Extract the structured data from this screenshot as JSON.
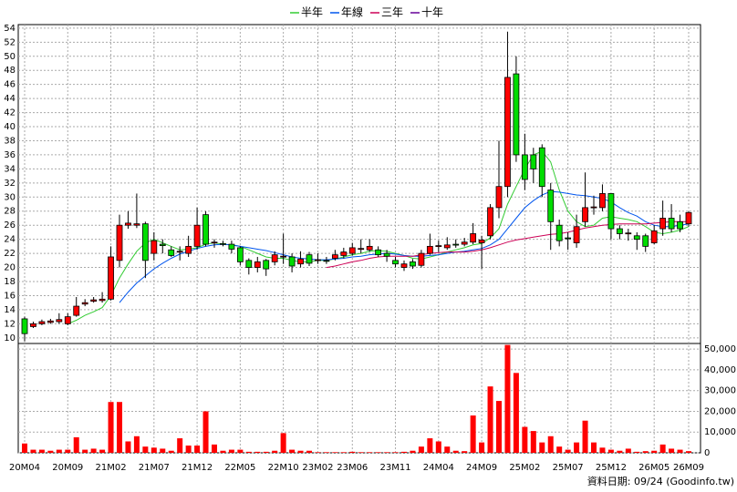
{
  "chart_data": {
    "type": "candlestick",
    "categories": [
      "20M04",
      null,
      null,
      null,
      null,
      "20M09",
      null,
      null,
      null,
      null,
      "21M02",
      null,
      null,
      null,
      null,
      "21M07",
      null,
      null,
      null,
      null,
      "21M12",
      null,
      null,
      null,
      null,
      "22M05",
      null,
      null,
      null,
      null,
      "22M10",
      null,
      null,
      null,
      "23M02",
      null,
      null,
      null,
      "23M06",
      null,
      null,
      null,
      null,
      "23M11",
      null,
      null,
      null,
      null,
      "24M04",
      null,
      null,
      null,
      null,
      "24M09",
      null,
      null,
      null,
      null,
      "25M02",
      null,
      null,
      null,
      null,
      "25M07",
      null,
      null,
      null,
      null,
      "25M12",
      null,
      null,
      null,
      null,
      "26M05",
      null,
      null,
      null,
      "26M09"
    ],
    "open": [
      12.7,
      11.6,
      12,
      12.2,
      12.3,
      12,
      13.2,
      14.8,
      15.2,
      15.3,
      15.5,
      21,
      26,
      26,
      26.2,
      22,
      23.3,
      22.5,
      22.2,
      22,
      23,
      27.5,
      23.5,
      23.4,
      23.3,
      22.8,
      21,
      20,
      21,
      20.8,
      21.5,
      21.5,
      20.5,
      21.8,
      21,
      21,
      21.3,
      21.7,
      22,
      22.6,
      22.5,
      22.5,
      22,
      21,
      20,
      20.8,
      20.3,
      22,
      23,
      22.8,
      23.3,
      23.3,
      23.6,
      23.5,
      24.5,
      28.5,
      31.5,
      47.5,
      36,
      36,
      37,
      31,
      26,
      24.2,
      23.5,
      26.5,
      28.5,
      28.5,
      30.5,
      25.5,
      24.8,
      24.5,
      24.5,
      23.5,
      25.5,
      27,
      26.5,
      26.2
    ],
    "high": [
      13,
      12.3,
      12.6,
      12.7,
      13.5,
      13.5,
      15.8,
      15.5,
      15.8,
      16.5,
      23,
      27.5,
      28,
      30.5,
      26.5,
      25,
      24,
      23,
      23,
      24.5,
      28.5,
      28,
      24,
      23.8,
      23.8,
      23,
      21.3,
      21.5,
      21.2,
      22.3,
      24.8,
      22,
      22.3,
      22.2,
      22,
      21.5,
      22.5,
      22.8,
      23.5,
      24,
      24,
      23,
      22.5,
      21.5,
      21,
      21.2,
      22.5,
      24.8,
      23.8,
      24.3,
      24,
      24.2,
      26.3,
      24.5,
      29,
      38,
      53.5,
      50,
      39,
      37,
      37.5,
      32,
      26.8,
      25,
      27.5,
      33.5,
      30.2,
      31.8,
      30.5,
      26,
      25.5,
      25,
      24.8,
      26,
      29.5,
      29,
      27.5,
      28
    ],
    "low": [
      9.5,
      11.4,
      11.8,
      12,
      12,
      11.8,
      13,
      14.5,
      15,
      15,
      15.3,
      20,
      25.5,
      25.6,
      18.5,
      21,
      22,
      21.5,
      21,
      21.5,
      22.5,
      23,
      22.8,
      23,
      22,
      20.3,
      19,
      19.3,
      18.8,
      20.3,
      20.5,
      19.3,
      20,
      20.2,
      20.5,
      20.5,
      21,
      21.3,
      21.7,
      22,
      22.2,
      21.5,
      20.8,
      20,
      19.5,
      19.8,
      20,
      21.8,
      22.2,
      22.5,
      22.8,
      23,
      23.3,
      19.8,
      24,
      27,
      30,
      35,
      31,
      32,
      30,
      22.5,
      23,
      22.5,
      22.8,
      25.8,
      27.5,
      28,
      24,
      24,
      23.8,
      22.5,
      22.2,
      23.3,
      24.5,
      25,
      25,
      25.8
    ],
    "close": [
      10.6,
      12,
      12.3,
      12.4,
      12.6,
      13,
      14.5,
      15,
      15.4,
      15.5,
      21.5,
      26,
      26.3,
      26.2,
      21,
      23.8,
      23.1,
      21.7,
      22.3,
      23,
      26,
      23.3,
      23.6,
      23.3,
      22.6,
      20.8,
      20,
      20.8,
      19.8,
      21.8,
      21.6,
      20.2,
      21.2,
      20.6,
      21.1,
      20.9,
      21.8,
      22.2,
      22.8,
      22.7,
      23,
      21.8,
      21.6,
      20.5,
      20.5,
      20.2,
      22,
      23,
      23.1,
      23.2,
      23.2,
      23.6,
      24.8,
      23.9,
      28.5,
      31.5,
      47,
      36,
      32.5,
      34,
      31.5,
      26.5,
      23.8,
      24.1,
      25.8,
      28.5,
      28.6,
      30.5,
      25.5,
      24.8,
      24.9,
      24,
      23,
      25.2,
      27,
      25.5,
      25.5,
      27.8
    ],
    "volume": [
      4500,
      1500,
      1500,
      1000,
      1500,
      1500,
      7500,
      1500,
      2000,
      1500,
      24500,
      24500,
      5500,
      8000,
      3000,
      2500,
      2000,
      1000,
      7000,
      3500,
      3500,
      20000,
      4000,
      1000,
      1500,
      1500,
      500,
      500,
      500,
      1000,
      9500,
      1500,
      1000,
      1000,
      300,
      300,
      300,
      300,
      500,
      300,
      300,
      300,
      300,
      300,
      500,
      1000,
      3000,
      7000,
      5500,
      3000,
      1000,
      800,
      18000,
      5000,
      32000,
      25000,
      52000,
      38500,
      12500,
      10500,
      5000,
      8000,
      3000,
      1500,
      5000,
      15500,
      5000,
      2500,
      1500,
      1000,
      2000,
      500,
      800,
      1000,
      4000,
      2000,
      1500,
      800
    ],
    "up_color": "#ff0000",
    "down_color": "#00dd00",
    "volume_color": "#ff0000",
    "series": [
      {
        "name": "半年",
        "color": "#33cc33",
        "values": [
          null,
          null,
          null,
          null,
          null,
          12,
          12.5,
          13.2,
          13.7,
          14.3,
          16,
          18.5,
          20.5,
          22.3,
          23.5,
          24,
          23.5,
          23,
          22.5,
          22.6,
          22.8,
          23.3,
          23.5,
          23.3,
          23.2,
          23,
          22.5,
          22,
          21.5,
          21.3,
          21.3,
          21,
          20.8,
          20.8,
          21,
          21,
          21.2,
          21.5,
          21.8,
          22,
          22.3,
          22.4,
          22.3,
          22,
          21.7,
          21.3,
          21.2,
          21.5,
          21.8,
          22.2,
          22.5,
          22.8,
          23.2,
          23.4,
          24.2,
          25.5,
          29,
          31.5,
          34,
          36,
          36.5,
          35,
          31,
          28,
          26.5,
          25.8,
          26,
          27,
          27.2,
          27,
          26.8,
          26.5,
          25.8,
          25,
          24.8,
          25,
          25.3,
          25.8
        ]
      },
      {
        "name": "年線",
        "color": "#0055ee",
        "values": [
          null,
          null,
          null,
          null,
          null,
          null,
          null,
          null,
          null,
          null,
          null,
          15,
          16.5,
          17.8,
          18.8,
          19.8,
          20.6,
          21.3,
          21.9,
          22.3,
          22.7,
          23,
          23.2,
          23.3,
          23.2,
          23,
          22.8,
          22.6,
          22.4,
          22.1,
          21.8,
          21.5,
          21.3,
          21.2,
          21.1,
          21.1,
          21.2,
          21.3,
          21.5,
          21.6,
          21.8,
          21.9,
          22,
          21.9,
          21.7,
          21.6,
          21.6,
          21.7,
          21.8,
          22,
          22.2,
          22.3,
          22.5,
          22.7,
          23.2,
          24,
          25.5,
          27,
          28.5,
          29.5,
          30.3,
          30.8,
          30.7,
          30.5,
          30.3,
          30.2,
          30,
          29.8,
          29.3,
          28.5,
          27.8,
          27.3,
          26.5,
          26,
          25.8,
          25.8,
          26,
          26.2
        ]
      },
      {
        "name": "三年",
        "color": "#cc0055",
        "values": [
          null,
          null,
          null,
          null,
          null,
          null,
          null,
          null,
          null,
          null,
          null,
          null,
          null,
          null,
          null,
          null,
          null,
          null,
          null,
          null,
          null,
          null,
          null,
          null,
          null,
          null,
          null,
          null,
          null,
          null,
          null,
          null,
          null,
          null,
          null,
          20,
          20.2,
          20.5,
          20.8,
          21,
          21.3,
          21.5,
          21.6,
          21.6,
          21.6,
          21.6,
          21.8,
          22,
          22.1,
          22.2,
          22.2,
          22.2,
          22.3,
          22.5,
          22.8,
          23.2,
          23.6,
          23.9,
          24.1,
          24.3,
          24.5,
          24.7,
          24.8,
          25,
          25.3,
          25.6,
          25.8,
          26,
          26.1,
          26.2,
          26.2,
          26.2,
          26.2,
          26.3,
          26.4,
          26.5,
          26.5,
          26.5
        ]
      },
      {
        "name": "十年",
        "color": "#660099",
        "values": [
          null,
          null,
          null,
          null,
          null,
          null,
          null,
          null,
          null,
          null,
          null,
          null,
          null,
          null,
          null,
          null,
          null,
          null,
          null,
          null,
          null,
          null,
          null,
          null,
          null,
          null,
          null,
          null,
          null,
          null,
          null,
          null,
          null,
          null,
          null,
          null,
          null,
          null,
          null,
          null,
          null,
          null,
          null,
          null,
          null,
          null,
          null,
          null,
          null,
          null,
          null,
          null,
          null,
          null,
          null,
          null,
          null,
          null,
          null,
          null,
          null,
          null,
          null,
          null,
          null,
          null,
          null,
          null,
          null,
          null,
          null,
          null,
          null,
          null,
          null,
          null,
          null,
          null
        ]
      }
    ],
    "ylim": [
      9.2,
      54.5
    ],
    "yticks": [
      10,
      12,
      14,
      16,
      18,
      20,
      22,
      24,
      26,
      28,
      30,
      32,
      34,
      36,
      38,
      40,
      42,
      44,
      46,
      48,
      50,
      52,
      54
    ],
    "volume_ylim": [
      0,
      52700
    ],
    "volume_yticks": [
      0,
      {
        "value": 10000,
        "label": "10,000"
      },
      {
        "value": 20000,
        "label": "20,000"
      },
      {
        "value": 30000,
        "label": "30,000"
      },
      {
        "value": 40000,
        "label": "40,000"
      },
      {
        "value": 50000,
        "label": "50,000"
      }
    ],
    "grid": true,
    "footer": "資料日期: 09/24 (Goodinfo.tw)"
  }
}
